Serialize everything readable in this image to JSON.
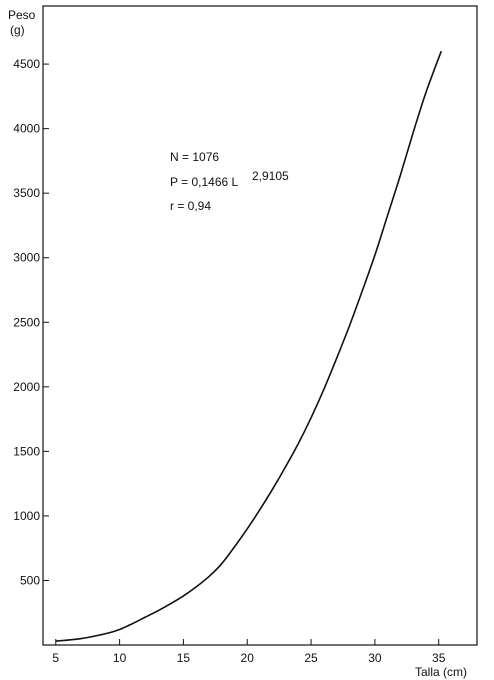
{
  "chart_data": {
    "type": "line",
    "xlabel": "Talla (cm)",
    "ylabel_line1": "Peso",
    "ylabel_line2": "(g)",
    "xlim": [
      4.0,
      38.0
    ],
    "ylim": [
      0,
      4950
    ],
    "xticks": [
      5,
      10,
      15,
      20,
      25,
      30,
      35
    ],
    "yticks": [
      500,
      1000,
      1500,
      2000,
      2500,
      3000,
      3500,
      4000,
      4500
    ],
    "grid": false,
    "series": [
      {
        "x": [
          5,
          7,
          9,
          10,
          11,
          12,
          13,
          14,
          15,
          16,
          17,
          18,
          19,
          20,
          21,
          22,
          23,
          24,
          25,
          26,
          27,
          28,
          29,
          30,
          31,
          32,
          33,
          34,
          35.2
        ],
        "values": [
          30,
          50,
          90,
          120,
          165,
          215,
          265,
          320,
          380,
          450,
          530,
          630,
          760,
          900,
          1050,
          1210,
          1380,
          1560,
          1760,
          1980,
          2220,
          2470,
          2740,
          3020,
          3330,
          3640,
          3970,
          4280,
          4600
        ]
      }
    ],
    "annotations": {
      "n": "N = 1076",
      "eq": "P = 0,1466  L",
      "eq_exp": "2,9105",
      "r": "r = 0,94"
    }
  }
}
